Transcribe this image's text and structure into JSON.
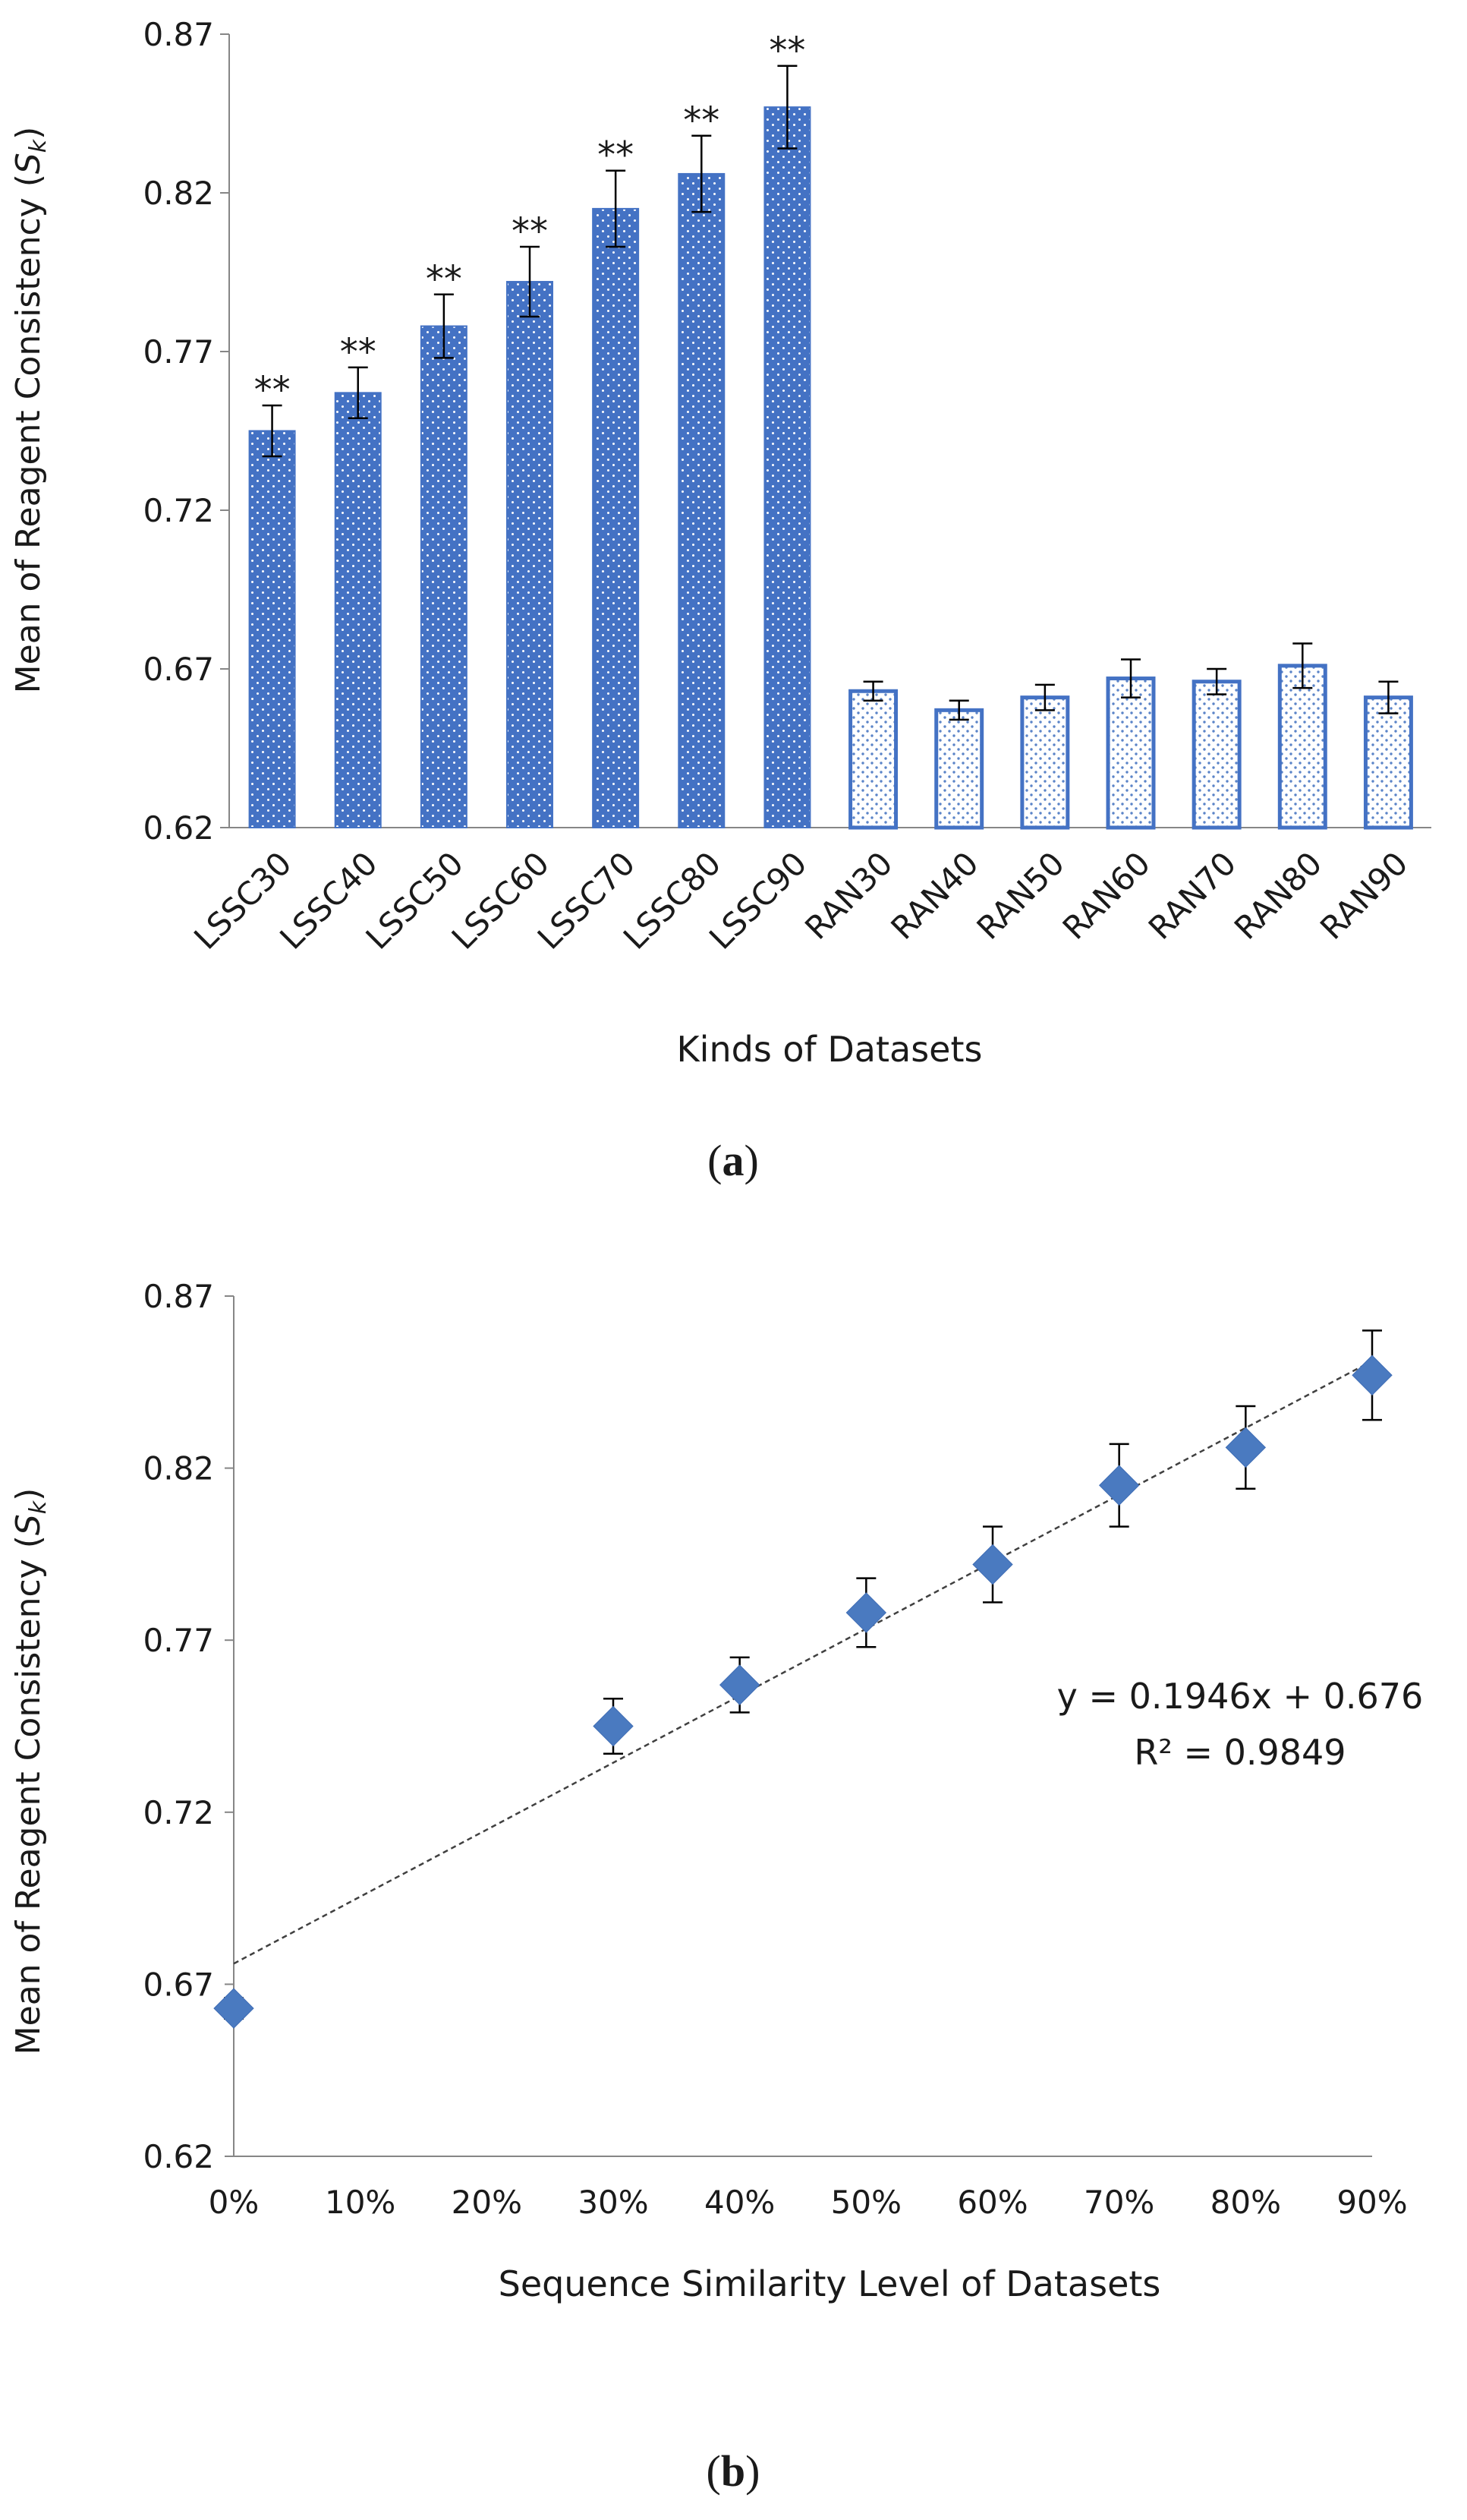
{
  "figure": {
    "panel_a_label": "a",
    "panel_b_label": "b"
  },
  "colors": {
    "bar_fill": "#4472c4",
    "bar_outline": "#4472c4",
    "marker": "#4a7ac0",
    "axis": "#868686",
    "error_bar": "#000000",
    "trendline": "#404040",
    "text": "#1a1a1a"
  },
  "chart_data": [
    {
      "type": "bar",
      "panel": "a",
      "xlabel": "Kinds of Datasets",
      "ylabel_prefix": "Mean of Reagent Consistency (",
      "ylabel_var": "S",
      "ylabel_sub": "k",
      "ylabel_suffix": ")",
      "ylim": [
        0.62,
        0.87
      ],
      "yticks": [
        "0.62",
        "0.67",
        "0.72",
        "0.77",
        "0.82",
        "0.87"
      ],
      "categories": [
        "LSSC30",
        "LSSC40",
        "LSSC50",
        "LSSC60",
        "LSSC70",
        "LSSC80",
        "LSSC90",
        "RAN30",
        "RAN40",
        "RAN50",
        "RAN60",
        "RAN70",
        "RAN80",
        "RAN90"
      ],
      "values": [
        0.745,
        0.757,
        0.778,
        0.792,
        0.815,
        0.826,
        0.847,
        0.663,
        0.657,
        0.661,
        0.667,
        0.666,
        0.671,
        0.661
      ],
      "errors": [
        0.008,
        0.008,
        0.01,
        0.011,
        0.012,
        0.012,
        0.013,
        0.003,
        0.003,
        0.004,
        0.006,
        0.004,
        0.007,
        0.005
      ],
      "annotations": [
        "**",
        "**",
        "**",
        "**",
        "**",
        "**",
        "**",
        "",
        "",
        "",
        "",
        "",
        "",
        ""
      ],
      "series": [
        {
          "name": "",
          "style": "solid fill with dots",
          "range": "LSSC"
        },
        {
          "name": "",
          "style": "outlined with dots",
          "range": "RAN"
        }
      ],
      "grid": false,
      "legend": "none"
    },
    {
      "type": "scatter",
      "panel": "b",
      "xlabel": "Sequence Similarity Level of Datasets",
      "ylabel_prefix": "Mean of Reagent Consistency (",
      "ylabel_var": "S",
      "ylabel_sub": "k",
      "ylabel_suffix": ")",
      "ylim": [
        0.62,
        0.87
      ],
      "yticks": [
        "0.62",
        "0.67",
        "0.72",
        "0.77",
        "0.82",
        "0.87"
      ],
      "xlim": [
        0,
        0.9
      ],
      "xticks": [
        "0%",
        "10%",
        "20%",
        "30%",
        "40%",
        "50%",
        "60%",
        "70%",
        "80%",
        "90%"
      ],
      "x": [
        0.0,
        0.3,
        0.4,
        0.5,
        0.6,
        0.7,
        0.8,
        0.9
      ],
      "y": [
        0.663,
        0.745,
        0.757,
        0.778,
        0.792,
        0.815,
        0.826,
        0.847
      ],
      "errors": [
        0.003,
        0.008,
        0.008,
        0.01,
        0.011,
        0.012,
        0.012,
        0.013
      ],
      "trendline": {
        "slope": 0.1946,
        "intercept": 0.676,
        "equation": "y = 0.1946x + 0.676",
        "r2_label": "R² = 0.9849"
      },
      "grid": false,
      "legend": "none"
    }
  ]
}
